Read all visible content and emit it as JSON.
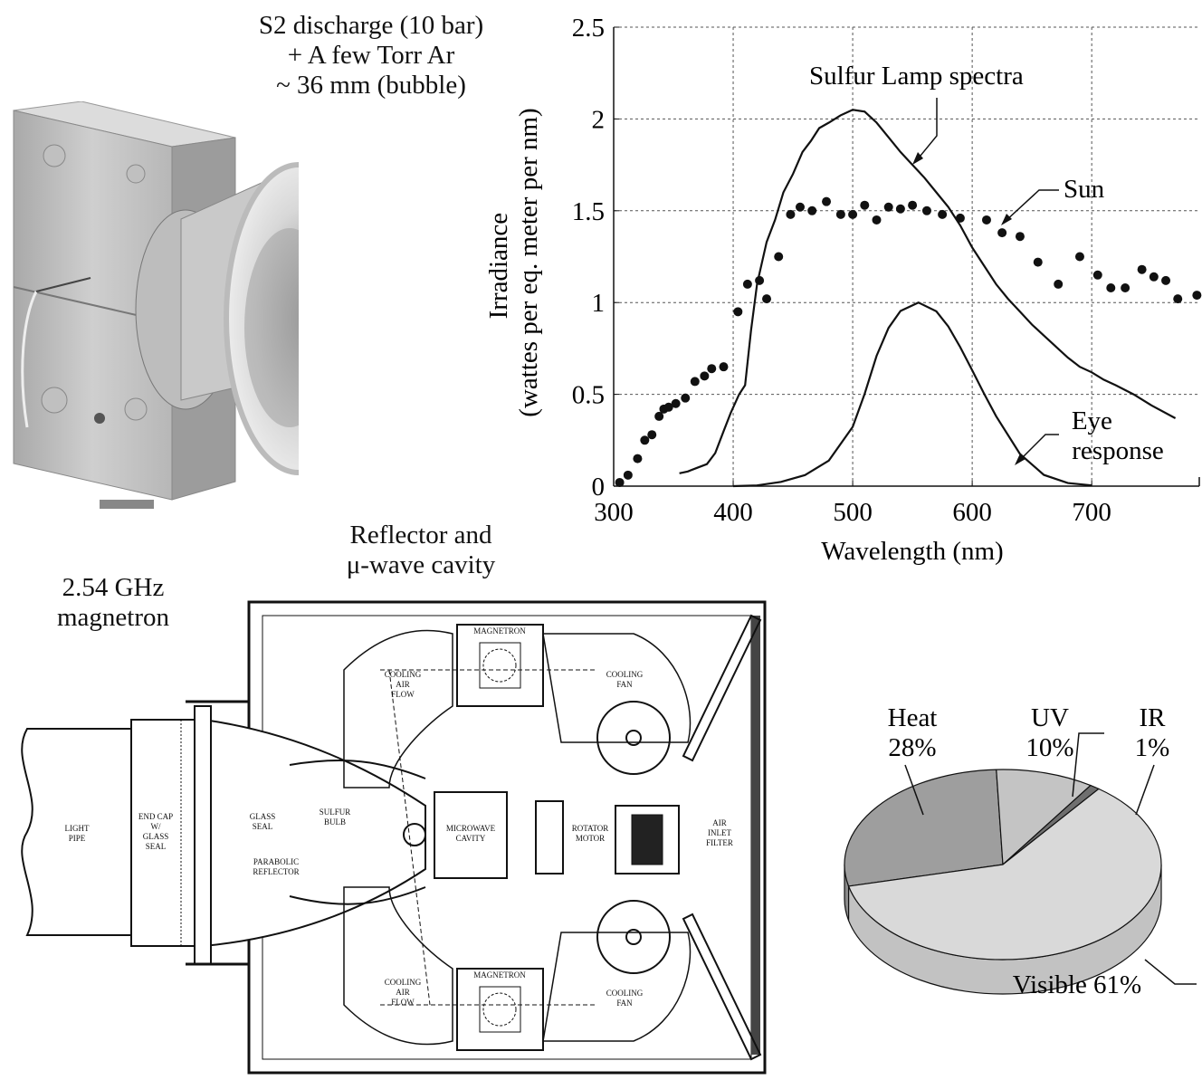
{
  "photo": {
    "caption_lines": [
      "S2 discharge (10 bar)",
      "+ A few Torr Ar",
      "~ 36 mm (bubble)"
    ]
  },
  "drawing": {
    "reflector_label_lines": [
      "Reflector and",
      "μ-wave cavity"
    ],
    "magnetron_label_lines": [
      "2.54 GHz",
      "magnetron"
    ],
    "parts": {
      "light_pipe": [
        "LIGHT",
        "PIPE"
      ],
      "end_cap": [
        "END CAP",
        "W/",
        "GLASS",
        "SEAL"
      ],
      "glass_seal": [
        "GLASS",
        "SEAL"
      ],
      "sulfur_bulb": [
        "SULFUR",
        "BULB"
      ],
      "parabolic_reflector": [
        "PARABOLIC",
        "REFLECTOR"
      ],
      "microwave_cavity": [
        "MICROWAVE",
        "CAVITY"
      ],
      "rotator_motor": [
        "ROTATOR",
        "MOTOR"
      ],
      "air_inlet_filter": [
        "AIR",
        "INLET",
        "FILTER"
      ],
      "magnetron_top": "MAGNETRON",
      "magnetron_bottom": "MAGNETRON",
      "cooling_fan_top": [
        "COOLING",
        "FAN"
      ],
      "cooling_fan_bottom": [
        "COOLING",
        "FAN"
      ],
      "cooling_air_top": [
        "COOLING",
        "AIR",
        "FLOW"
      ],
      "cooling_air_bottom": [
        "COOLING",
        "AIR",
        "FLOW"
      ]
    }
  },
  "chart_data": [
    {
      "type": "line",
      "title": "",
      "xlabel": "Wavelength (nm)",
      "ylabel_lines": [
        "Irradiance",
        "(wattes per eq. meter per nm)"
      ],
      "xlim": [
        300,
        790
      ],
      "ylim": [
        0,
        2.5
      ],
      "xticks": [
        300,
        400,
        500,
        600,
        700
      ],
      "yticks": [
        0,
        0.5,
        1,
        1.5,
        2,
        2.5
      ],
      "ytick_labels": [
        "0",
        "0.5",
        "1",
        "1.5",
        "2",
        "2.5"
      ],
      "grid": true,
      "series": [
        {
          "name": "Sulfur Lamp spectra",
          "style": "line",
          "color": "#111111",
          "x": [
            355,
            362,
            370,
            378,
            385,
            392,
            398,
            405,
            410,
            415,
            420,
            428,
            435,
            442,
            450,
            458,
            465,
            472,
            480,
            490,
            500,
            510,
            520,
            530,
            540,
            550,
            560,
            570,
            580,
            590,
            600,
            610,
            620,
            630,
            640,
            650,
            660,
            670,
            680,
            690,
            700,
            710,
            720,
            735,
            750,
            770
          ],
          "values": [
            0.07,
            0.08,
            0.1,
            0.12,
            0.18,
            0.3,
            0.4,
            0.5,
            0.55,
            0.85,
            1.1,
            1.33,
            1.45,
            1.6,
            1.7,
            1.82,
            1.88,
            1.95,
            1.98,
            2.02,
            2.05,
            2.04,
            1.98,
            1.9,
            1.82,
            1.75,
            1.68,
            1.6,
            1.52,
            1.42,
            1.3,
            1.2,
            1.1,
            1.02,
            0.95,
            0.88,
            0.82,
            0.76,
            0.7,
            0.65,
            0.62,
            0.58,
            0.55,
            0.5,
            0.44,
            0.37
          ]
        },
        {
          "name": "Sun",
          "style": "dots",
          "color": "#111111",
          "x": [
            305,
            312,
            320,
            326,
            332,
            338,
            342,
            346,
            352,
            360,
            368,
            376,
            382,
            392,
            404,
            412,
            422,
            428,
            438,
            448,
            456,
            466,
            478,
            490,
            500,
            510,
            520,
            530,
            540,
            550,
            562,
            575,
            590,
            612,
            625,
            640,
            655,
            672,
            690,
            705,
            716,
            728,
            742,
            752,
            762,
            772,
            788
          ],
          "values": [
            0.02,
            0.06,
            0.15,
            0.25,
            0.28,
            0.38,
            0.42,
            0.43,
            0.45,
            0.48,
            0.57,
            0.6,
            0.64,
            0.65,
            0.95,
            1.1,
            1.12,
            1.02,
            1.25,
            1.48,
            1.52,
            1.5,
            1.55,
            1.48,
            1.48,
            1.53,
            1.45,
            1.52,
            1.51,
            1.53,
            1.5,
            1.48,
            1.46,
            1.45,
            1.38,
            1.36,
            1.22,
            1.1,
            1.25,
            1.15,
            1.08,
            1.08,
            1.18,
            1.14,
            1.12,
            1.02,
            1.04
          ]
        },
        {
          "name": "Eye response",
          "style": "line",
          "color": "#111111",
          "x": [
            400,
            420,
            440,
            460,
            480,
            500,
            510,
            520,
            530,
            540,
            555,
            570,
            580,
            590,
            600,
            610,
            620,
            640,
            660,
            680,
            700
          ],
          "values": [
            0.0,
            0.004,
            0.023,
            0.06,
            0.139,
            0.323,
            0.503,
            0.71,
            0.862,
            0.954,
            1.0,
            0.952,
            0.87,
            0.757,
            0.631,
            0.503,
            0.381,
            0.175,
            0.061,
            0.017,
            0.004
          ]
        }
      ],
      "annotations": [
        {
          "text": "Sulfur Lamp spectra",
          "target_series": "Sulfur Lamp spectra"
        },
        {
          "text": "Sun",
          "target_series": "Sun"
        },
        {
          "text_lines": [
            "Eye",
            "response"
          ],
          "target_series": "Eye response"
        }
      ]
    },
    {
      "type": "pie",
      "title": "",
      "style": "3d",
      "slices": [
        {
          "label": "Visible",
          "value": 61,
          "display": "Visible 61%",
          "color": "#d9d9d9",
          "side_color": "#c2c2c2"
        },
        {
          "label": "Heat",
          "value": 28,
          "display_lines": [
            "Heat",
            "28%"
          ],
          "color": "#9e9e9e",
          "side_color": "#8a8a8a"
        },
        {
          "label": "UV",
          "value": 10,
          "display_lines": [
            "UV",
            "10%"
          ],
          "color": "#c4c4c4",
          "side_color": "#adadad"
        },
        {
          "label": "IR",
          "value": 1,
          "display_lines": [
            "IR",
            "1%"
          ],
          "color": "#6f6f6f",
          "side_color": "#5c5c5c"
        }
      ]
    }
  ]
}
